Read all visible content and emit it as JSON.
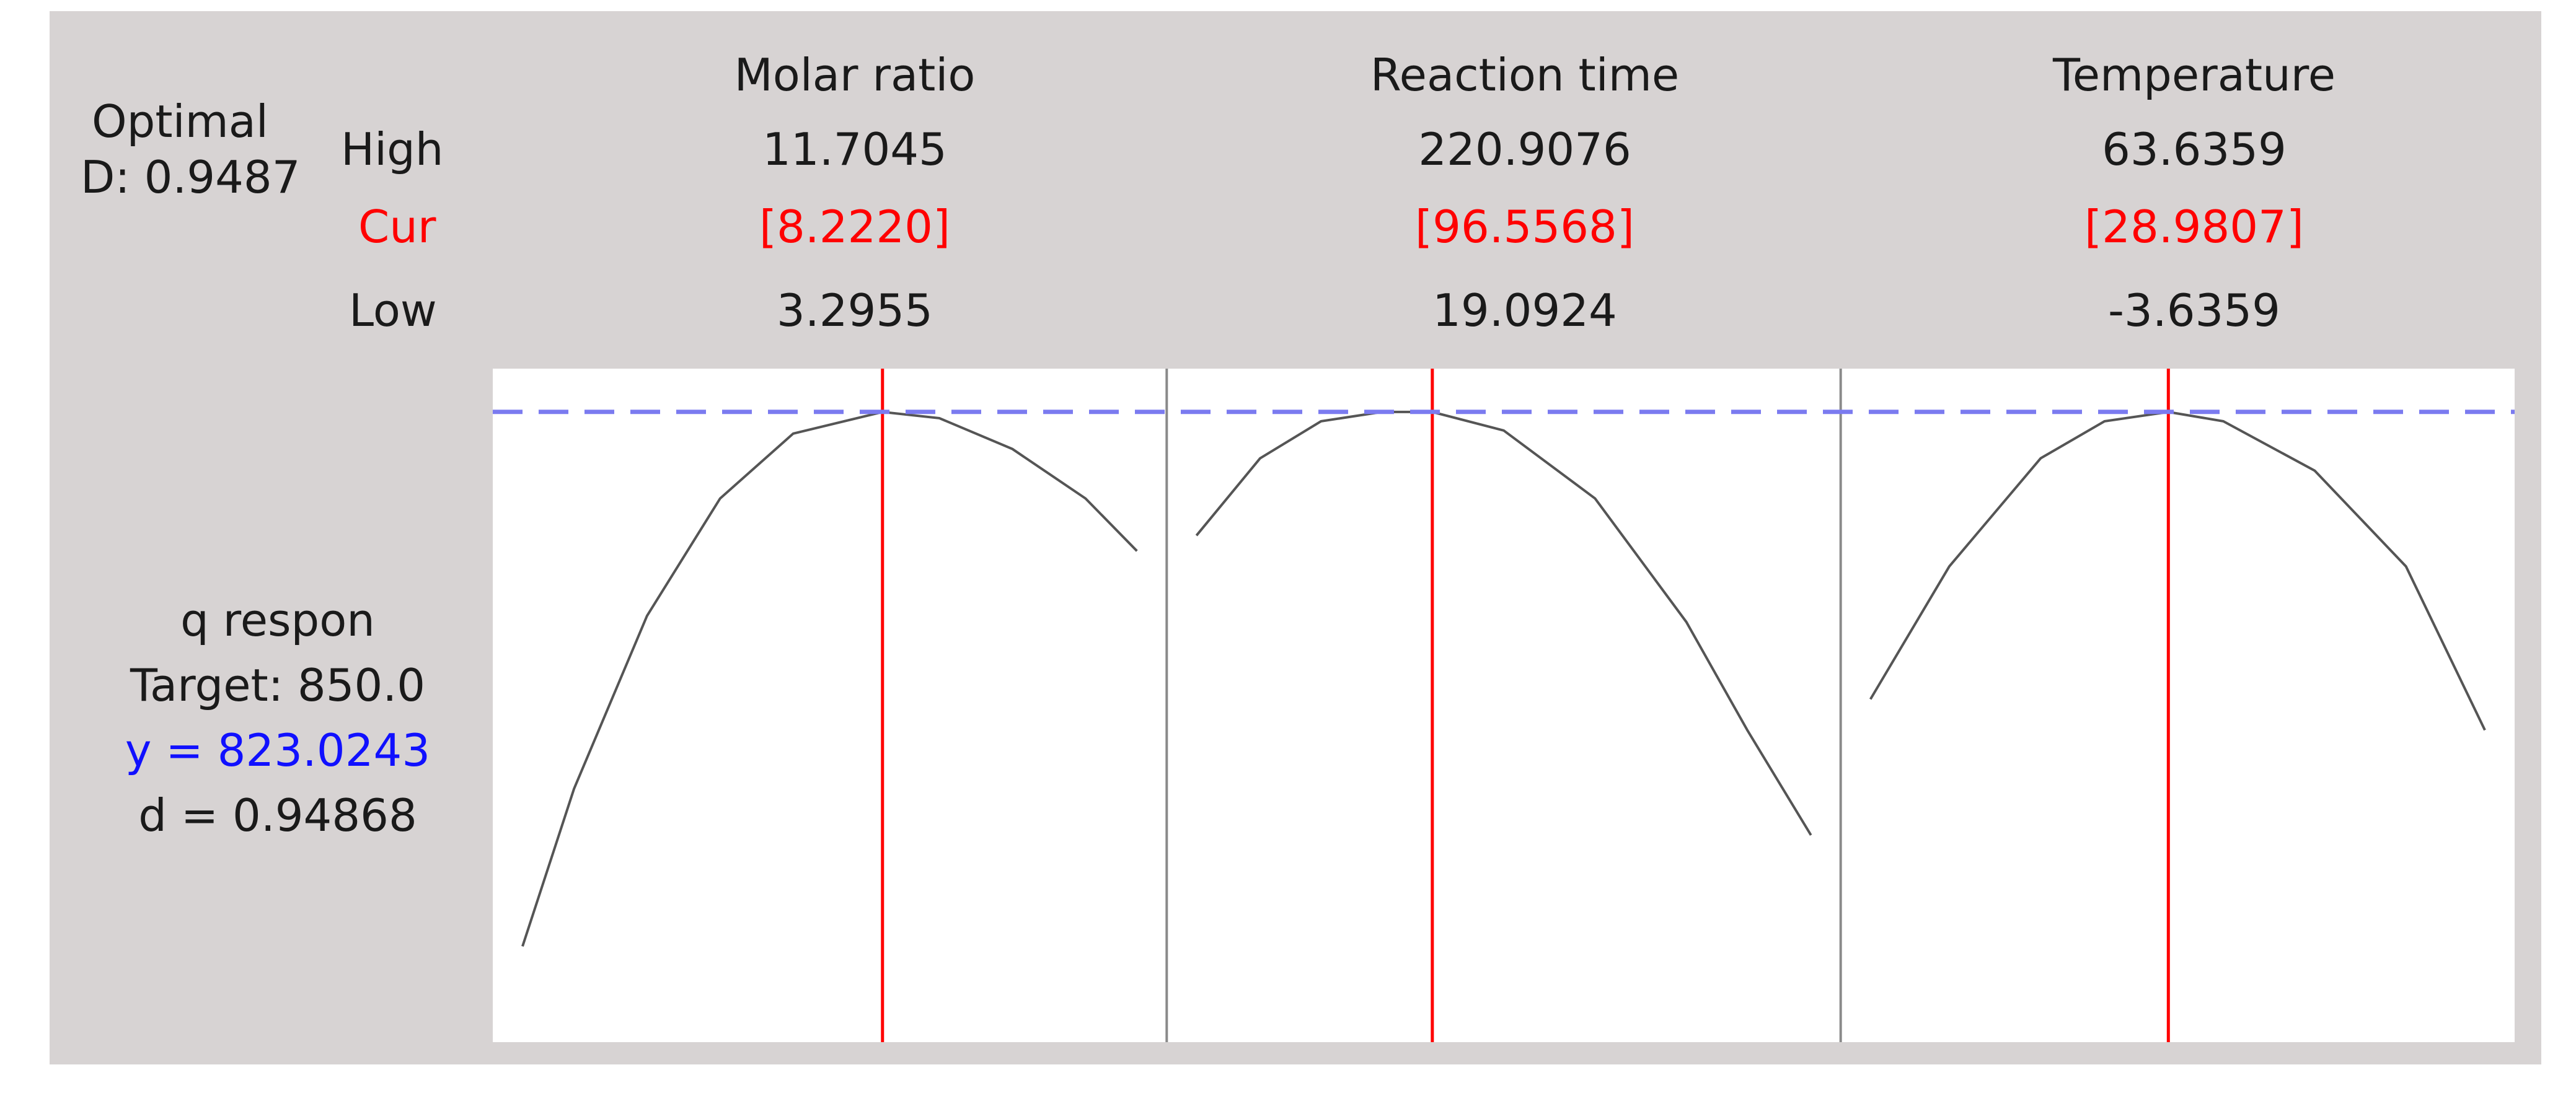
{
  "optimal": {
    "label": "Optimal",
    "d_label": "D: 0.9487"
  },
  "row_labels": {
    "high": "High",
    "cur": "Cur",
    "low": "Low"
  },
  "factors": [
    {
      "name": "Molar ratio",
      "high": "11.7045",
      "cur": "[8.2220]",
      "low": "3.2955"
    },
    {
      "name": "Reaction time",
      "high": "220.9076",
      "cur": "[96.5568]",
      "low": "19.0924"
    },
    {
      "name": "Temperature",
      "high": "63.6359",
      "cur": "[28.9807]",
      "low": "-3.6359"
    }
  ],
  "response": {
    "name": "q respon",
    "target": "Target: 850.0",
    "y": "y = 823.0243",
    "d": "d = 0.94868"
  },
  "colors": {
    "panel_bg": "#d7d3d3",
    "plot_bg": "#ffffff",
    "current_line": "#ff0000",
    "predicted_line": "#7b7bf0",
    "curve": "#555555",
    "cur_text": "#ff0000",
    "y_text": "#1010ff"
  },
  "chart_data": {
    "type": "line",
    "title": "",
    "target": 850.0,
    "predicted_y": 823.0243,
    "desirability": 0.94868,
    "panels": [
      {
        "factor": "Molar ratio",
        "xlim": [
          3.2955,
          11.7045
        ],
        "current": 8.222,
        "x": [
          3.2955,
          4.0,
          5.0,
          6.0,
          7.0,
          8.222,
          9.0,
          10.0,
          11.0,
          11.7045
        ],
        "y": [
          650.0,
          701.0,
          757.0,
          795.0,
          816.0,
          823.0,
          821.0,
          811.0,
          795.0,
          778.0
        ]
      },
      {
        "factor": "Reaction time",
        "xlim": [
          19.0924,
          220.9076
        ],
        "current": 96.5568,
        "x": [
          19.0924,
          40.0,
          60.0,
          80.0,
          96.5568,
          120.0,
          150.0,
          180.0,
          200.0,
          220.9076
        ],
        "y": [
          783.0,
          808.0,
          820.0,
          823.0,
          823.0,
          817.0,
          795.0,
          755.0,
          720.0,
          686.0
        ]
      },
      {
        "factor": "Temperature",
        "xlim": [
          -3.6359,
          63.6359
        ],
        "current": 28.9807,
        "x": [
          -3.6359,
          5.0,
          15.0,
          22.0,
          28.9807,
          35.0,
          45.0,
          55.0,
          63.6359
        ],
        "y": [
          730.0,
          773.0,
          808.0,
          820.0,
          823.0,
          820.0,
          804.0,
          773.0,
          720.0
        ]
      }
    ],
    "ylim": [
      625.0,
      829.0
    ]
  }
}
